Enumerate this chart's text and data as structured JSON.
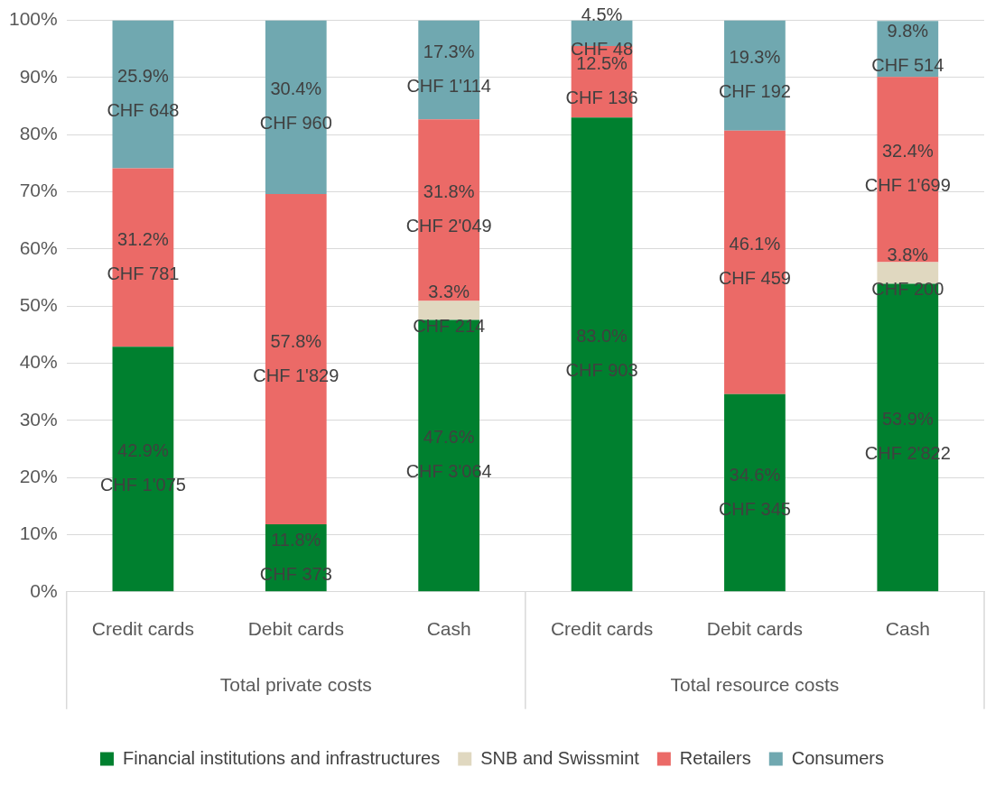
{
  "chart_data": {
    "type": "bar",
    "stacked": true,
    "categories": [
      "Credit cards",
      "Debit cards",
      "Cash",
      "Credit cards",
      "Debit cards",
      "Cash"
    ],
    "series": [
      {
        "name": "Financial institutions and infrastructures",
        "color": "#00802f",
        "values": [
          42.9,
          11.8,
          47.6,
          83.0,
          34.6,
          53.9
        ],
        "value_labels": [
          "42.9%\nCHF 1'075",
          "11.8%\nCHF 373",
          "47.6%\nCHF 3'064",
          "83.0%\nCHF 903",
          "34.6%\nCHF 345",
          "53.9%\nCHF 2'822"
        ]
      },
      {
        "name": "SNB and Swissmint",
        "color": "#e0d8c0",
        "values": [
          null,
          null,
          3.3,
          null,
          null,
          3.8
        ],
        "value_labels": [
          null,
          null,
          "3.3%\nCHF 214",
          null,
          null,
          "3.8%\nCHF 200"
        ]
      },
      {
        "name": "Retailers",
        "color": "#eb6a67",
        "values": [
          31.2,
          57.8,
          31.8,
          12.5,
          46.1,
          32.4
        ],
        "value_labels": [
          "31.2%\nCHF 781",
          "57.8%\nCHF 1'829",
          "31.8%\nCHF 2'049",
          "12.5%\nCHF 136",
          "46.1%\nCHF 459",
          "32.4%\nCHF 1'699"
        ]
      },
      {
        "name": "Consumers",
        "color": "#70a8b0",
        "values": [
          25.9,
          30.4,
          17.3,
          4.5,
          19.3,
          9.8
        ],
        "value_labels": [
          "25.9%\nCHF 648",
          "30.4%\nCHF 960",
          "17.3%\nCHF 1'114",
          "4.5%\nCHF 48",
          "19.3%\nCHF 192",
          "9.8%\nCHF 514"
        ]
      }
    ],
    "ylim": [
      0,
      100
    ],
    "yticks": [
      {
        "value": 0,
        "label": "0%"
      },
      {
        "value": 10,
        "label": "10%"
      },
      {
        "value": 20,
        "label": "20%"
      },
      {
        "value": 30,
        "label": "30%"
      },
      {
        "value": 40,
        "label": "40%"
      },
      {
        "value": 50,
        "label": "50%"
      },
      {
        "value": 60,
        "label": "60%"
      },
      {
        "value": 70,
        "label": "70%"
      },
      {
        "value": 80,
        "label": "80%"
      },
      {
        "value": 90,
        "label": "90%"
      },
      {
        "value": 100,
        "label": "100%"
      }
    ],
    "annotations": [
      "Total private costs",
      "Total resource costs"
    ],
    "grid": "y",
    "legend": "bottom"
  }
}
